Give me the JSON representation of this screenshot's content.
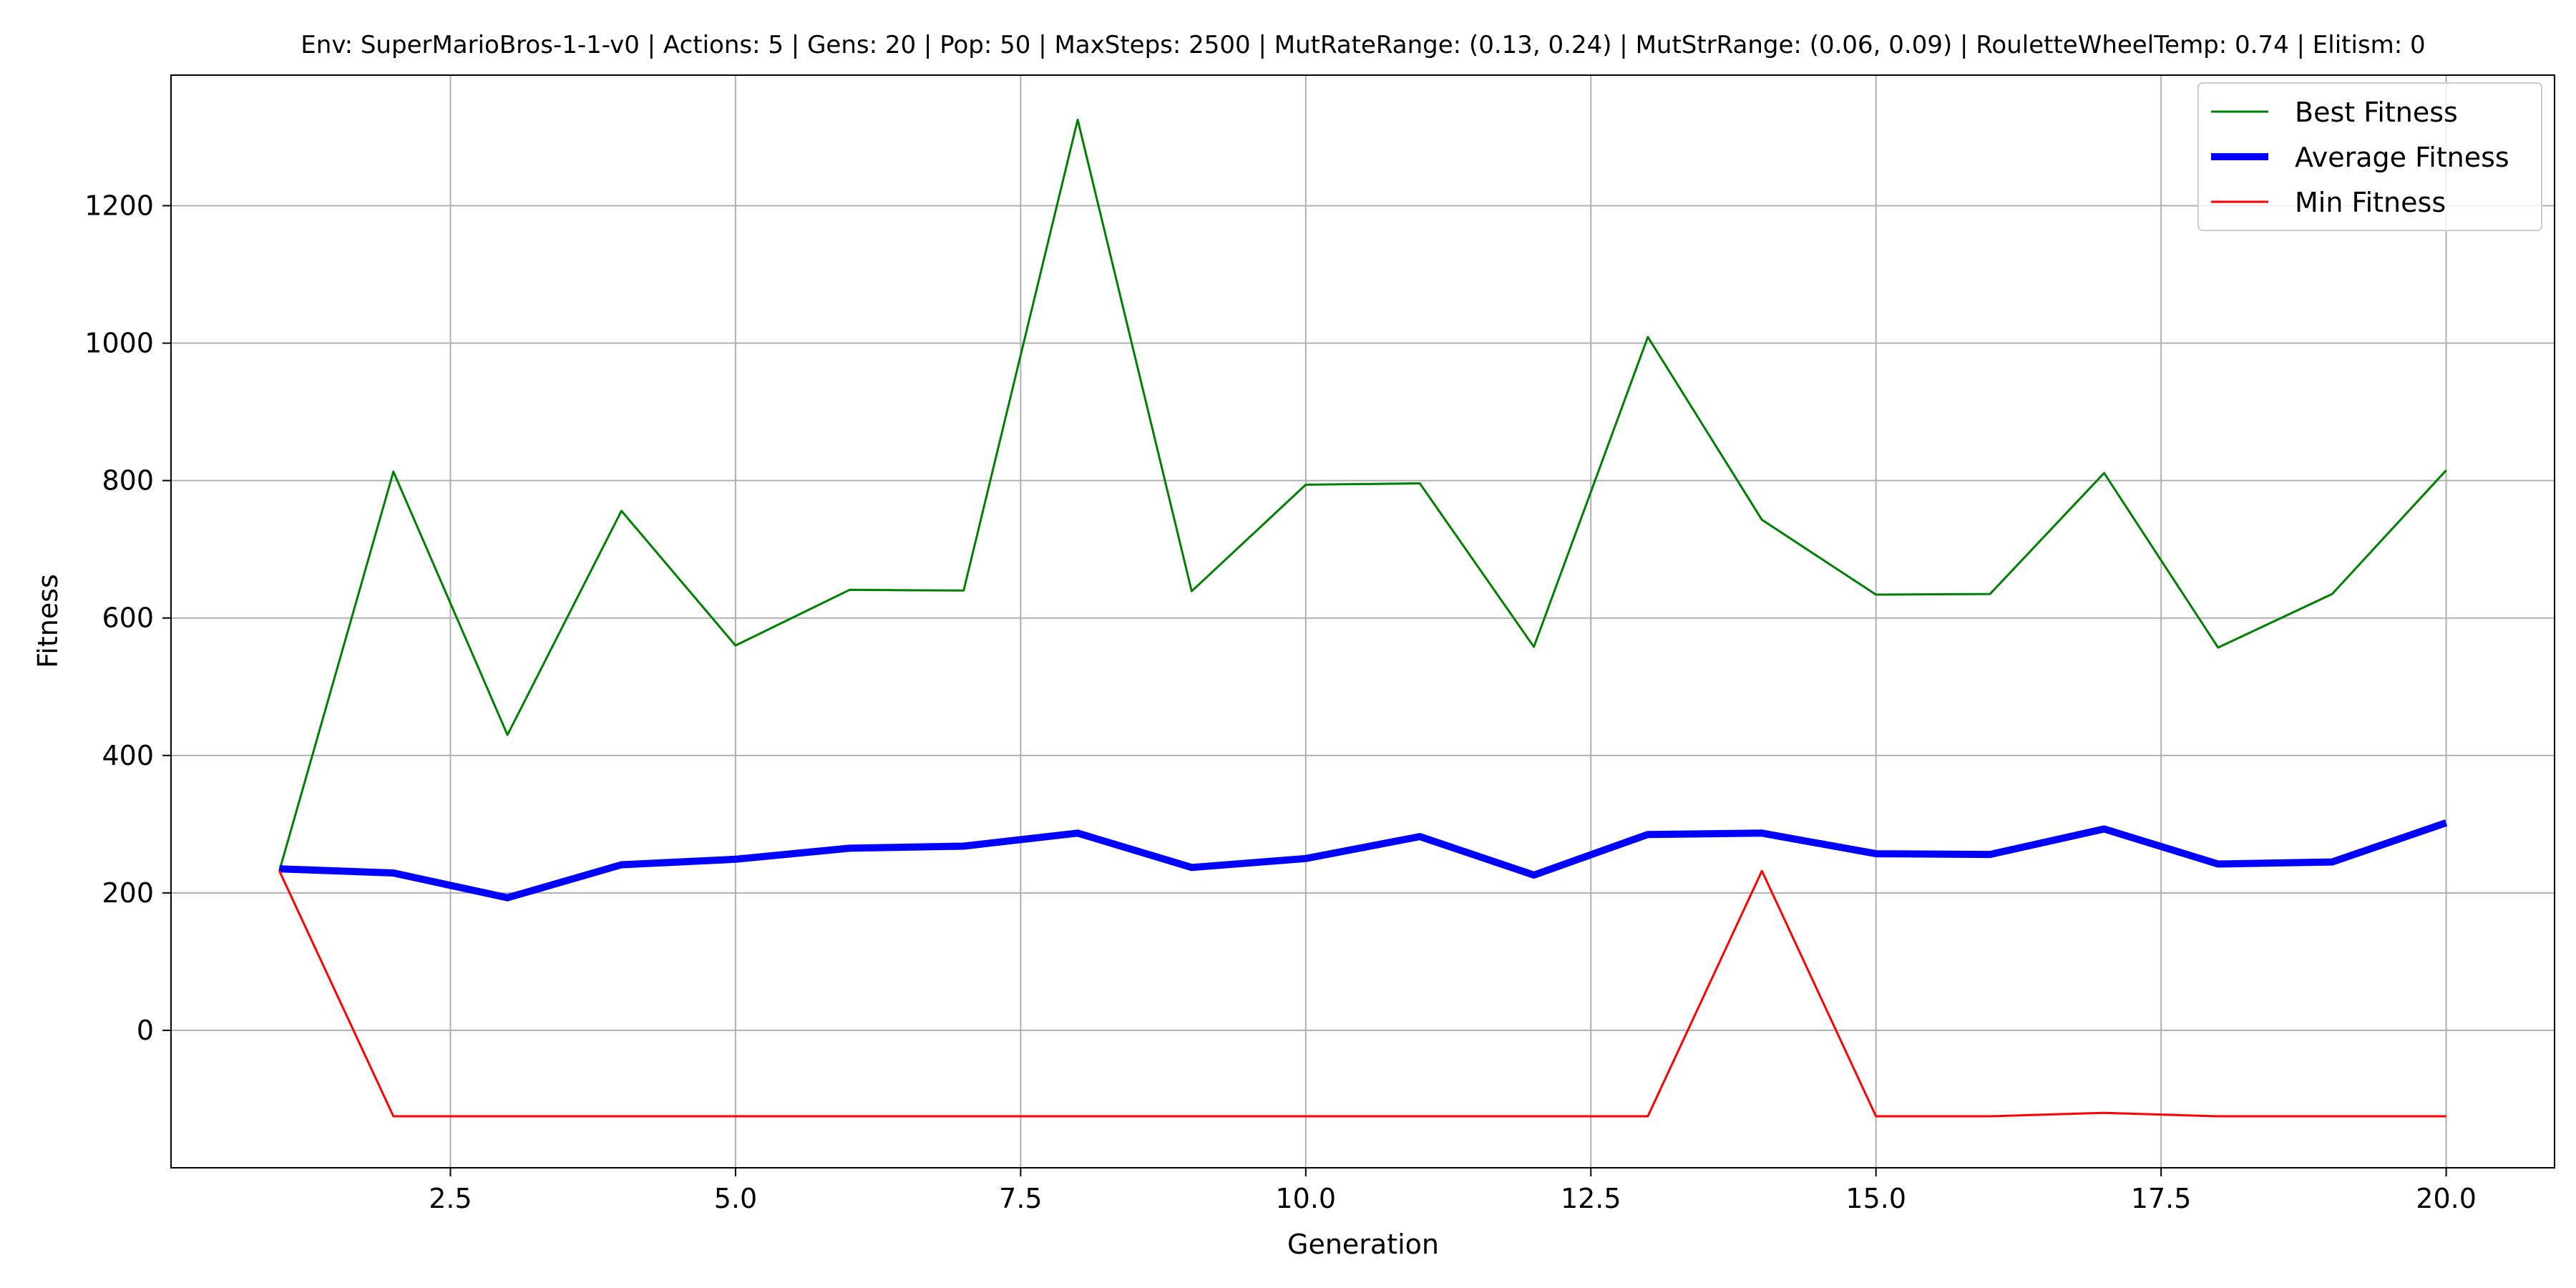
{
  "chart_data": {
    "type": "line",
    "title": "Env: SuperMarioBros-1-1-v0 | Actions: 5 | Gens: 20 | Pop: 50 | MaxSteps: 2500 | MutRateRange: (0.13, 0.24) | MutStrRange: (0.06, 0.09) | RouletteWheelTemp: 0.74 | Elitism: 0",
    "xlabel": "Generation",
    "ylabel": "Fitness",
    "xlim": [
      0.05,
      20.95
    ],
    "ylim": [
      -200,
      1390
    ],
    "xticks": [
      2.5,
      5.0,
      7.5,
      10.0,
      12.5,
      15.0,
      17.5,
      20.0
    ],
    "xtick_labels": [
      "2.5",
      "5.0",
      "7.5",
      "10.0",
      "12.5",
      "15.0",
      "17.5",
      "20.0"
    ],
    "yticks": [
      0,
      200,
      400,
      600,
      800,
      1000,
      1200
    ],
    "ytick_labels": [
      "0",
      "200",
      "400",
      "600",
      "800",
      "1000",
      "1200"
    ],
    "grid": true,
    "legend_position": "top-right",
    "x": [
      1,
      2,
      3,
      4,
      5,
      6,
      7,
      8,
      9,
      10,
      11,
      12,
      13,
      14,
      15,
      16,
      17,
      18,
      19,
      20
    ],
    "series": [
      {
        "name": "Best Fitness",
        "color": "#008000",
        "values": [
          232,
          813,
          430,
          756,
          560,
          641,
          640,
          1325,
          639,
          794,
          796,
          558,
          1009,
          743,
          634,
          635,
          811,
          557,
          635,
          815
        ]
      },
      {
        "name": "Average Fitness",
        "color": "#0000ff",
        "values": [
          235,
          229,
          193,
          241,
          249,
          265,
          268,
          287,
          237,
          250,
          282,
          226,
          285,
          287,
          257,
          256,
          293,
          242,
          245,
          302
        ]
      },
      {
        "name": "Min Fitness",
        "color": "#ff0000",
        "values": [
          232,
          -125,
          -125,
          -125,
          -125,
          -125,
          -125,
          -125,
          -125,
          -125,
          -125,
          -125,
          -125,
          232,
          -125,
          -125,
          -120,
          -125,
          -125,
          -125
        ]
      }
    ]
  }
}
